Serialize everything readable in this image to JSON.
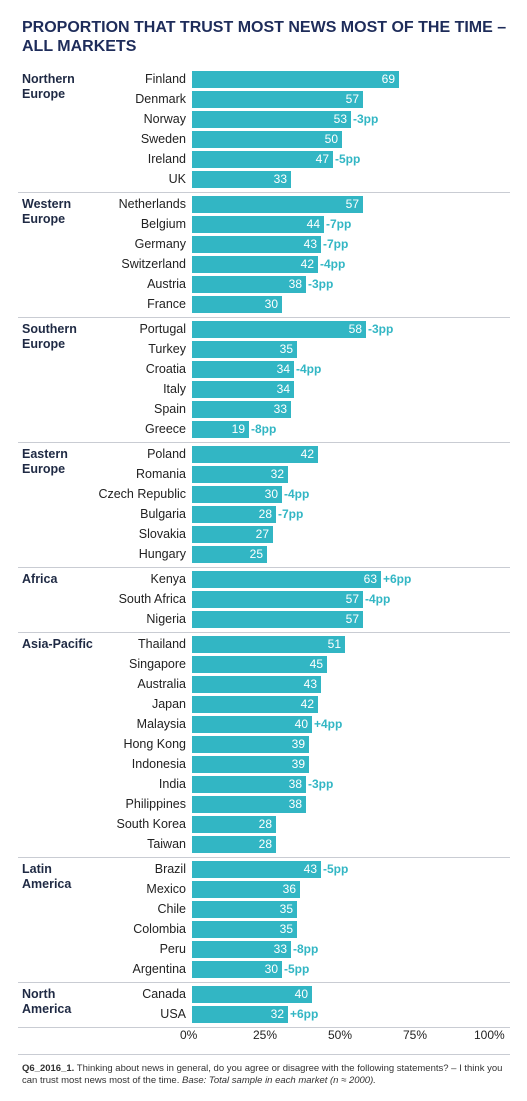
{
  "chart_data": {
    "type": "bar",
    "title": "PROPORTION THAT TRUST MOST NEWS MOST OF THE TIME – ALL MARKETS",
    "xlim": [
      0,
      100
    ],
    "x_ticks": [
      "0%",
      "25%",
      "50%",
      "75%",
      "100%"
    ],
    "bar_color": "#32b6c4",
    "change_color": "#32b6c4",
    "groups": [
      {
        "name": "Northern Europe",
        "items": [
          {
            "label": "Finland",
            "value": 69,
            "change": ""
          },
          {
            "label": "Denmark",
            "value": 57,
            "change": ""
          },
          {
            "label": "Norway",
            "value": 53,
            "change": "-3pp"
          },
          {
            "label": "Sweden",
            "value": 50,
            "change": ""
          },
          {
            "label": "Ireland",
            "value": 47,
            "change": "-5pp"
          },
          {
            "label": "UK",
            "value": 33,
            "change": ""
          }
        ]
      },
      {
        "name": "Western Europe",
        "items": [
          {
            "label": "Netherlands",
            "value": 57,
            "change": ""
          },
          {
            "label": "Belgium",
            "value": 44,
            "change": "-7pp"
          },
          {
            "label": "Germany",
            "value": 43,
            "change": "-7pp"
          },
          {
            "label": "Switzerland",
            "value": 42,
            "change": "-4pp"
          },
          {
            "label": "Austria",
            "value": 38,
            "change": "-3pp"
          },
          {
            "label": "France",
            "value": 30,
            "change": ""
          }
        ]
      },
      {
        "name": "Southern Europe",
        "items": [
          {
            "label": "Portugal",
            "value": 58,
            "change": "-3pp"
          },
          {
            "label": "Turkey",
            "value": 35,
            "change": ""
          },
          {
            "label": "Croatia",
            "value": 34,
            "change": "-4pp"
          },
          {
            "label": "Italy",
            "value": 34,
            "change": ""
          },
          {
            "label": "Spain",
            "value": 33,
            "change": ""
          },
          {
            "label": "Greece",
            "value": 19,
            "change": "-8pp"
          }
        ]
      },
      {
        "name": "Eastern Europe",
        "items": [
          {
            "label": "Poland",
            "value": 42,
            "change": ""
          },
          {
            "label": "Romania",
            "value": 32,
            "change": ""
          },
          {
            "label": "Czech Republic",
            "value": 30,
            "change": "-4pp"
          },
          {
            "label": "Bulgaria",
            "value": 28,
            "change": "-7pp"
          },
          {
            "label": "Slovakia",
            "value": 27,
            "change": ""
          },
          {
            "label": "Hungary",
            "value": 25,
            "change": ""
          }
        ]
      },
      {
        "name": "Africa",
        "items": [
          {
            "label": "Kenya",
            "value": 63,
            "change": "+6pp"
          },
          {
            "label": "South Africa",
            "value": 57,
            "change": "-4pp"
          },
          {
            "label": "Nigeria",
            "value": 57,
            "change": ""
          }
        ]
      },
      {
        "name": "Asia-Pacific",
        "items": [
          {
            "label": "Thailand",
            "value": 51,
            "change": ""
          },
          {
            "label": "Singapore",
            "value": 45,
            "change": ""
          },
          {
            "label": "Australia",
            "value": 43,
            "change": ""
          },
          {
            "label": "Japan",
            "value": 42,
            "change": ""
          },
          {
            "label": "Malaysia",
            "value": 40,
            "change": "+4pp"
          },
          {
            "label": "Hong Kong",
            "value": 39,
            "change": ""
          },
          {
            "label": "Indonesia",
            "value": 39,
            "change": ""
          },
          {
            "label": "India",
            "value": 38,
            "change": "-3pp"
          },
          {
            "label": "Philippines",
            "value": 38,
            "change": ""
          },
          {
            "label": "South Korea",
            "value": 28,
            "change": ""
          },
          {
            "label": "Taiwan",
            "value": 28,
            "change": ""
          }
        ]
      },
      {
        "name": "Latin America",
        "items": [
          {
            "label": "Brazil",
            "value": 43,
            "change": "-5pp"
          },
          {
            "label": "Mexico",
            "value": 36,
            "change": ""
          },
          {
            "label": "Chile",
            "value": 35,
            "change": ""
          },
          {
            "label": "Colombia",
            "value": 35,
            "change": ""
          },
          {
            "label": "Peru",
            "value": 33,
            "change": "-8pp"
          },
          {
            "label": "Argentina",
            "value": 30,
            "change": "-5pp"
          }
        ]
      },
      {
        "name": "North America",
        "items": [
          {
            "label": "Canada",
            "value": 40,
            "change": ""
          },
          {
            "label": "USA",
            "value": 32,
            "change": "+6pp"
          }
        ]
      }
    ]
  },
  "footnote": {
    "code": "Q6_2016_1.",
    "text": " Thinking about news in general, do you agree or disagree with the following statements? – I think you can trust most news most of the time.",
    "base": " Base: Total sample in each market (n ≈ 2000)."
  }
}
